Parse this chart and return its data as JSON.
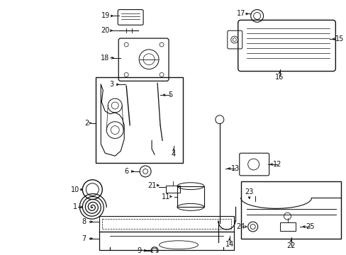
{
  "bg": "#ffffff",
  "fw": 4.89,
  "fh": 3.6,
  "dpi": 100,
  "lc": "#111111",
  "fs": 7.0
}
